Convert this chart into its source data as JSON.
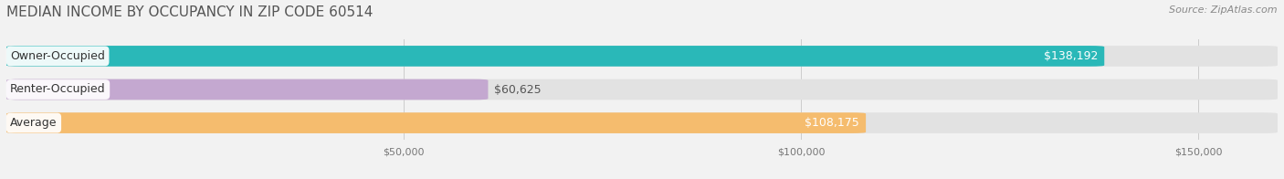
{
  "title": "MEDIAN INCOME BY OCCUPANCY IN ZIP CODE 60514",
  "source": "Source: ZipAtlas.com",
  "categories": [
    "Owner-Occupied",
    "Renter-Occupied",
    "Average"
  ],
  "values": [
    138192,
    60625,
    108175
  ],
  "bar_colors": [
    "#2ab8b8",
    "#c4a8d0",
    "#f5bc6e"
  ],
  "value_labels": [
    "$138,192",
    "$60,625",
    "$108,175"
  ],
  "xlim": [
    0,
    160000
  ],
  "xticks": [
    50000,
    100000,
    150000
  ],
  "xtick_labels": [
    "$50,000",
    "$100,000",
    "$150,000"
  ],
  "background_color": "#f2f2f2",
  "bar_bg_color": "#e2e2e2",
  "title_fontsize": 11,
  "source_fontsize": 8,
  "bar_label_fontsize": 9,
  "value_label_fontsize": 9,
  "figsize": [
    14.06,
    1.96
  ],
  "dpi": 100
}
